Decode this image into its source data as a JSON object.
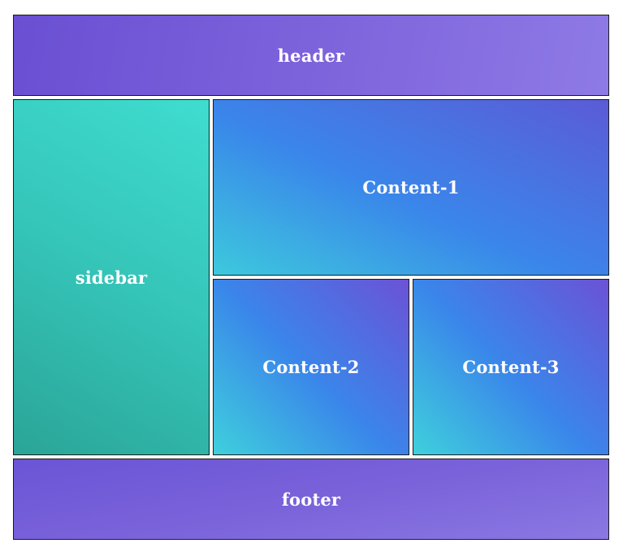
{
  "layout": {
    "header": {
      "label": "header"
    },
    "sidebar": {
      "label": "sidebar"
    },
    "content_1": {
      "label": "Content-1"
    },
    "content_2": {
      "label": "Content-2"
    },
    "content_3": {
      "label": "Content-3"
    },
    "footer": {
      "label": "footer"
    }
  },
  "colors": {
    "header": "#7d63db",
    "sidebar": "#35c4b8",
    "content": "#3a86ea",
    "footer": "#7a62da",
    "text": "#ffffff",
    "border": "#1a1a1a"
  }
}
